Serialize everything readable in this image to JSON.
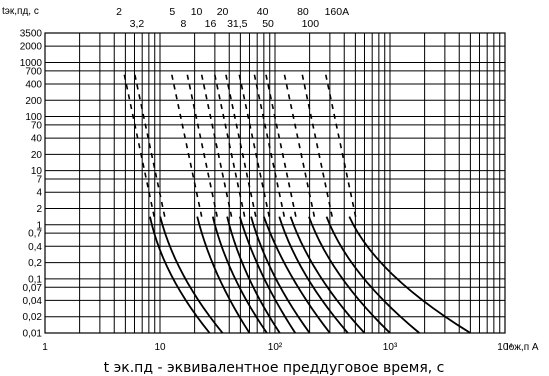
{
  "chart_data": {
    "type": "line",
    "y_axis_title": "tэк,пд, с",
    "x_axis_title": "Iож,п A",
    "caption": "t эк.пд - эквивалентное преддуговое время, с",
    "x_scale": "log",
    "y_scale": "log",
    "xlim": [
      1,
      10000
    ],
    "ylim": [
      0.01,
      3500
    ],
    "grid": true,
    "x_ticks": [
      {
        "value": 1,
        "label": "1"
      },
      {
        "value": 10,
        "label": "10"
      },
      {
        "value": 100,
        "label": "10²"
      },
      {
        "value": 1000,
        "label": "10³"
      },
      {
        "value": 10000,
        "label": "10⁴"
      }
    ],
    "y_ticks": [
      {
        "value": 3500,
        "label": "3500"
      },
      {
        "value": 2000,
        "label": "2000"
      },
      {
        "value": 1000,
        "label": "1000"
      },
      {
        "value": 700,
        "label": "700"
      },
      {
        "value": 400,
        "label": "400"
      },
      {
        "value": 200,
        "label": "200"
      },
      {
        "value": 100,
        "label": "100"
      },
      {
        "value": 70,
        "label": "70"
      },
      {
        "value": 40,
        "label": "40"
      },
      {
        "value": 20,
        "label": "20"
      },
      {
        "value": 10,
        "label": "10"
      },
      {
        "value": 7,
        "label": "7"
      },
      {
        "value": 4,
        "label": "4"
      },
      {
        "value": 2,
        "label": "2"
      },
      {
        "value": 1,
        "label": "1"
      },
      {
        "value": 0.7,
        "label": "0,7"
      },
      {
        "value": 0.4,
        "label": "0,4"
      },
      {
        "value": 0.2,
        "label": "0,2"
      },
      {
        "value": 0.1,
        "label": "0,1"
      },
      {
        "value": 0.07,
        "label": "0,07"
      },
      {
        "value": 0.04,
        "label": "0,04"
      },
      {
        "value": 0.02,
        "label": "0,02"
      },
      {
        "value": 0.01,
        "label": "0,01"
      }
    ],
    "ratings_top": [
      {
        "label": "2",
        "x": 4.4
      },
      {
        "label": "5",
        "x": 12.8
      },
      {
        "label": "10",
        "x": 20.8
      },
      {
        "label": "20",
        "x": 35
      },
      {
        "label": "40",
        "x": 78
      },
      {
        "label": "80",
        "x": 175
      },
      {
        "label": "160A",
        "x": 345
      }
    ],
    "ratings_bottom": [
      {
        "label": "3,2",
        "x": 6.3
      },
      {
        "label": "8",
        "x": 16
      },
      {
        "label": "16",
        "x": 27.5
      },
      {
        "label": "31,5",
        "x": 47
      },
      {
        "label": "50",
        "x": 87
      },
      {
        "label": "100",
        "x": 203
      }
    ],
    "series": [
      {
        "name": "2",
        "x_at_10": 7.5,
        "x_at_1": 8.5,
        "x_at_001": 27
      },
      {
        "name": "3,2",
        "x_at_10": 8.8,
        "x_at_1": 10.5,
        "x_at_001": 35
      },
      {
        "name": "5",
        "x_at_10": 18,
        "x_at_1": 22,
        "x_at_001": 60
      },
      {
        "name": "8",
        "x_at_10": 25,
        "x_at_1": 30,
        "x_at_001": 85
      },
      {
        "name": "10",
        "x_at_10": 33,
        "x_at_1": 40,
        "x_at_001": 110
      },
      {
        "name": "16",
        "x_at_10": 40,
        "x_at_1": 52,
        "x_at_001": 150
      },
      {
        "name": "20",
        "x_at_10": 52,
        "x_at_1": 65,
        "x_at_001": 200
      },
      {
        "name": "31,5",
        "x_at_10": 62,
        "x_at_1": 85,
        "x_at_001": 300
      },
      {
        "name": "40",
        "x_at_10": 90,
        "x_at_1": 115,
        "x_at_001": 430
      },
      {
        "name": "50",
        "x_at_10": 110,
        "x_at_1": 145,
        "x_at_001": 600
      },
      {
        "name": "80",
        "x_at_10": 160,
        "x_at_1": 210,
        "x_at_001": 1000
      },
      {
        "name": "100",
        "x_at_10": 230,
        "x_at_1": 300,
        "x_at_001": 1800
      },
      {
        "name": "160A",
        "x_at_10": 360,
        "x_at_1": 480,
        "x_at_001": 5000
      }
    ],
    "dashed_top_t": 700,
    "dashed_shift_per_decade": 0.11
  }
}
